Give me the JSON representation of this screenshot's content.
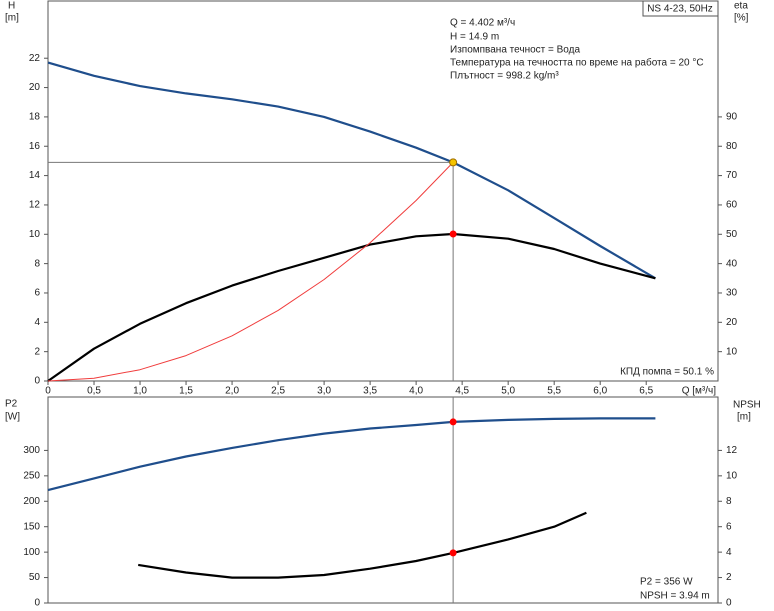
{
  "chart_data": [
    {
      "type": "line",
      "box_title": "NS 4-23, 50Hz",
      "ylabel": "H",
      "yunit": "[m]",
      "y2label": "eta",
      "y2unit": "[%]",
      "xlabel": "Q [м³/ч]",
      "xlim": [
        0,
        7.28
      ],
      "ylim": [
        0,
        25.9
      ],
      "y2lim": [
        0,
        129.5
      ],
      "xticks": [
        0,
        {
          "value": 0.5,
          "label": "0,5"
        },
        {
          "value": 1,
          "label": "1,0"
        },
        {
          "value": 1.5,
          "label": "1,5"
        },
        {
          "value": 2,
          "label": "2,0"
        },
        {
          "value": 2.5,
          "label": "2,5"
        },
        {
          "value": 3,
          "label": "3,0"
        },
        {
          "value": 3.5,
          "label": "3,5"
        },
        {
          "value": 4,
          "label": "4,0"
        },
        {
          "value": 4.5,
          "label": "4,5"
        },
        {
          "value": 5,
          "label": "5,0"
        },
        {
          "value": 5.5,
          "label": "5,5"
        },
        {
          "value": 6,
          "label": "6,0"
        },
        {
          "value": 6.5,
          "label": "6,5"
        }
      ],
      "yticks": [
        0,
        2,
        4,
        6,
        8,
        10,
        12,
        14,
        16,
        18,
        20,
        22
      ],
      "y2ticks": [
        10,
        20,
        30,
        40,
        50,
        60,
        70,
        80,
        90
      ],
      "series": [
        {
          "color": "#1f4e8c",
          "x": [
            0,
            0.5,
            1,
            1.5,
            2,
            2.5,
            3,
            3.5,
            4,
            4.402,
            5,
            5.5,
            6,
            6.6
          ],
          "values": [
            21.7,
            20.8,
            20.1,
            19.6,
            19.2,
            18.7,
            18.0,
            17.0,
            15.9,
            14.9,
            13.0,
            11.1,
            9.2,
            7.0
          ]
        },
        {
          "color": "#000000",
          "axis": "y2",
          "x": [
            0,
            0.5,
            1,
            1.5,
            2,
            2.5,
            3,
            3.5,
            4,
            4.402,
            5,
            5.5,
            6,
            6.6
          ],
          "values": [
            0,
            11,
            19.5,
            26.5,
            32.5,
            37.5,
            42,
            46.5,
            49.3,
            50.1,
            48.5,
            45,
            40,
            35
          ]
        },
        {
          "color": "#f03c3c",
          "x": [
            0,
            0.5,
            1,
            1.5,
            2,
            2.5,
            3,
            3.5,
            4,
            4.402
          ],
          "values": [
            0,
            0.19,
            0.77,
            1.73,
            3.08,
            4.81,
            6.92,
            9.42,
            12.3,
            14.9
          ]
        }
      ],
      "points": [
        {
          "x": 4.402,
          "y": 14.9,
          "color": "#f5c400"
        },
        {
          "x": 4.402,
          "y": 50.1,
          "axis": "y2",
          "color": "#ff0000"
        }
      ],
      "crosshair": true,
      "annotations": [
        "Q = 4.402 м³/ч",
        "H = 14.9 m",
        "Изпомпвана течност = Вода",
        "Температура на течността по време на работа = 20 °C",
        "Плътност = 998.2 kg/m³",
        "КПД помпа = 50.1 %"
      ]
    },
    {
      "type": "line",
      "ylabel": "P2",
      "yunit": "[W]",
      "y2label": "NPSH",
      "y2unit": "[m]",
      "xlim": [
        0,
        7.28
      ],
      "ylim": [
        0,
        405
      ],
      "y2lim": [
        0,
        16.2
      ],
      "yticks": [
        0,
        50,
        100,
        150,
        200,
        250,
        300
      ],
      "y2ticks": [
        0,
        2,
        4,
        6,
        8,
        10,
        12
      ],
      "series": [
        {
          "color": "#1f4e8c",
          "x": [
            0,
            0.5,
            1,
            1.5,
            2,
            2.5,
            3,
            3.5,
            4,
            4.402,
            5,
            5.5,
            6,
            6.6
          ],
          "values": [
            222,
            245,
            268,
            288,
            305,
            320,
            333,
            343,
            350,
            356,
            360,
            362,
            363,
            363
          ]
        },
        {
          "color": "#000000",
          "axis": "y2",
          "x": [
            0.98,
            1.5,
            2,
            2.5,
            3,
            3.5,
            4,
            4.402,
            5,
            5.5,
            5.85
          ],
          "values": [
            3.0,
            2.4,
            2.0,
            2.0,
            2.2,
            2.7,
            3.3,
            3.94,
            5.0,
            6.0,
            7.1
          ]
        }
      ],
      "points": [
        {
          "x": 4.402,
          "y": 356,
          "color": "#ff0000"
        },
        {
          "x": 4.402,
          "y": 3.94,
          "axis": "y2",
          "color": "#ff0000"
        }
      ],
      "crosshair": true,
      "annotations": [
        "P2 = 356 W",
        "NPSH = 3.94 m"
      ]
    }
  ]
}
